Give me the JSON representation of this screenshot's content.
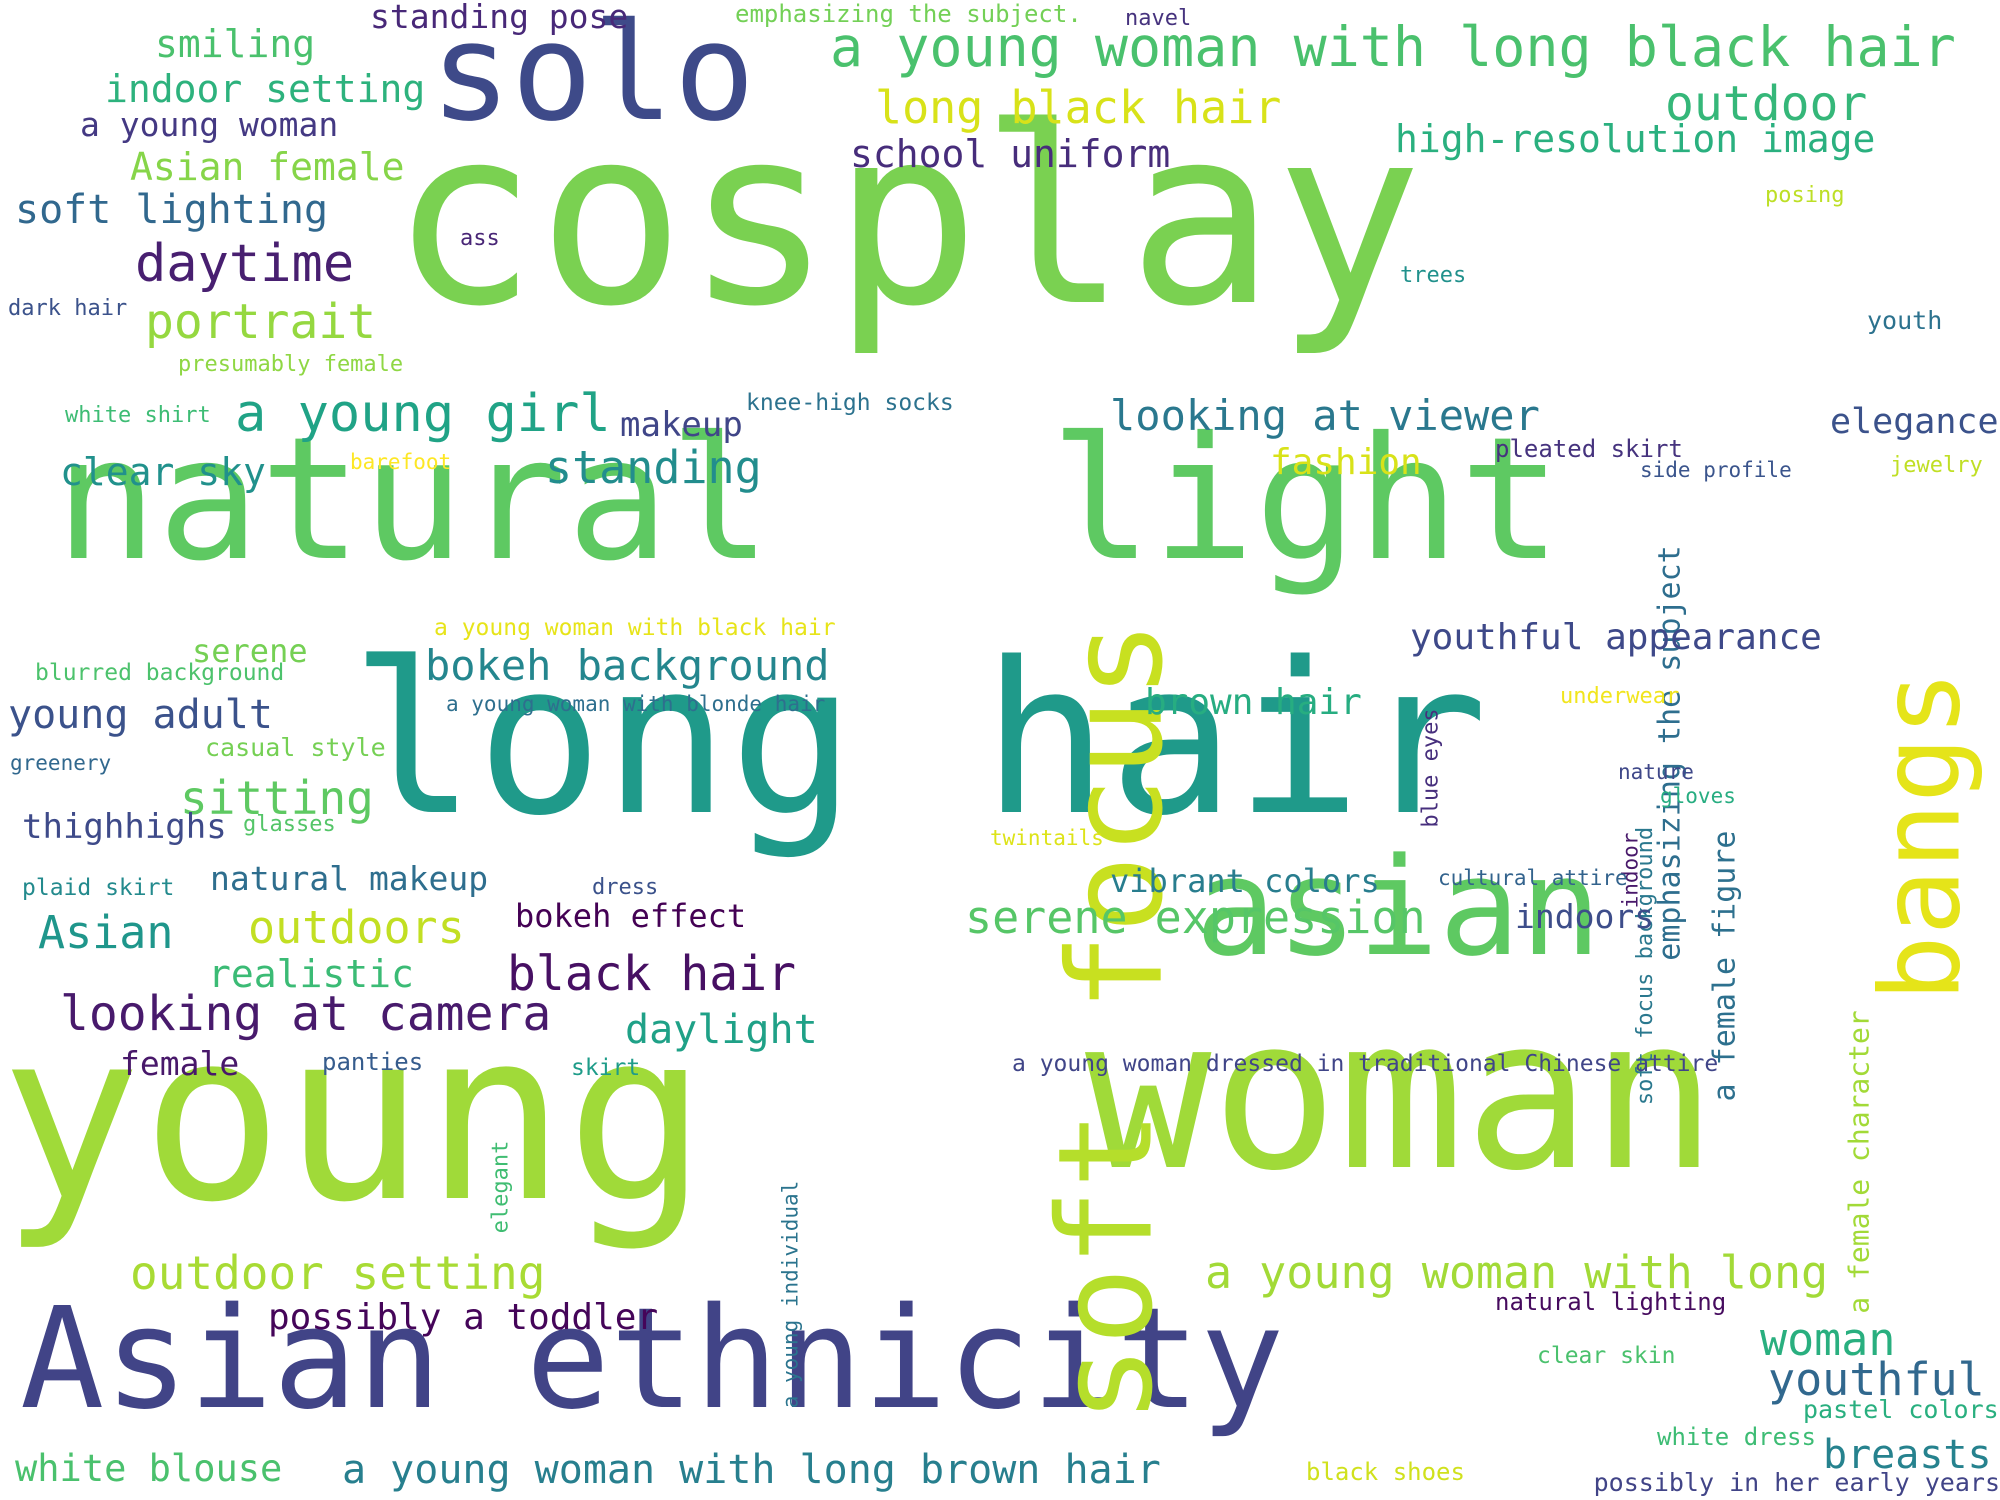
{
  "words": [
    {
      "id": "cosplay",
      "text": "cosplay",
      "color": "#7ad151"
    },
    {
      "id": "young",
      "text": "young",
      "color": "#a0da39"
    },
    {
      "id": "woman",
      "text": "woman",
      "color": "#a0da39"
    },
    {
      "id": "long-hair",
      "text": "long hair",
      "color": "#1f9a8a"
    },
    {
      "id": "natural",
      "text": "natural",
      "color": "#5ec962"
    },
    {
      "id": "light",
      "text": "light",
      "color": "#5ec962"
    },
    {
      "id": "asian-ethnicity",
      "text": "Asian ethnicity",
      "color": "#414487"
    },
    {
      "id": "solo",
      "text": "solo",
      "color": "#3e4a89"
    },
    {
      "id": "asian",
      "text": "asian",
      "color": "#5ec962"
    },
    {
      "id": "soft",
      "text": "soft",
      "color": "#b5de2b"
    },
    {
      "id": "focus",
      "text": "focus",
      "color": "#c8e020"
    },
    {
      "id": "bangs",
      "text": "bangs",
      "color": "#e5e419"
    },
    {
      "id": "young-woman-long-black-hair",
      "text": "a young woman with long black hair",
      "color": "#4ac16d"
    },
    {
      "id": "outdoor",
      "text": "outdoor",
      "color": "#35b779"
    },
    {
      "id": "long-black-hair",
      "text": "long black hair",
      "color": "#d8e219"
    },
    {
      "id": "high-res",
      "text": "high-resolution image",
      "color": "#2ab07f"
    },
    {
      "id": "school-uniform",
      "text": "school uniform",
      "color": "#472d7b"
    },
    {
      "id": "standing-pose",
      "text": "standing pose",
      "color": "#482878"
    },
    {
      "id": "emphasizing-subject-dot",
      "text": "emphasizing the subject.",
      "color": "#73d056"
    },
    {
      "id": "navel",
      "text": "navel",
      "color": "#46337e"
    },
    {
      "id": "smiling",
      "text": "smiling",
      "color": "#4ac16d"
    },
    {
      "id": "indoor-setting",
      "text": "indoor setting",
      "color": "#2db27d"
    },
    {
      "id": "a-young-woman",
      "text": "a young woman",
      "color": "#443983"
    },
    {
      "id": "asian-female",
      "text": "Asian female",
      "color": "#86d549"
    },
    {
      "id": "soft-lighting",
      "text": "soft lighting",
      "color": "#31688e"
    },
    {
      "id": "ass",
      "text": "ass",
      "color": "#482576"
    },
    {
      "id": "posing",
      "text": "posing",
      "color": "#bddf26"
    },
    {
      "id": "daytime",
      "text": "daytime",
      "color": "#481f70"
    },
    {
      "id": "trees",
      "text": "trees",
      "color": "#21918c"
    },
    {
      "id": "dark-hair",
      "text": "dark hair",
      "color": "#3b528b"
    },
    {
      "id": "youth",
      "text": "youth",
      "color": "#2c728e"
    },
    {
      "id": "portrait",
      "text": "portrait",
      "color": "#95d840"
    },
    {
      "id": "presumably-female",
      "text": "presumably female",
      "color": "#8fd744"
    },
    {
      "id": "a-young-girl",
      "text": "a young girl",
      "color": "#20a386"
    },
    {
      "id": "knee-high-socks",
      "text": "knee-high socks",
      "color": "#2c728e"
    },
    {
      "id": "makeup",
      "text": "makeup",
      "color": "#404688"
    },
    {
      "id": "looking-at-viewer",
      "text": "looking at viewer",
      "color": "#2a788e"
    },
    {
      "id": "elegance",
      "text": "elegance",
      "color": "#3b528b"
    },
    {
      "id": "white-shirt",
      "text": "white shirt",
      "color": "#3dbc74"
    },
    {
      "id": "clear-sky",
      "text": "clear sky",
      "color": "#21918c"
    },
    {
      "id": "barefoot",
      "text": "barefoot",
      "color": "#fde725"
    },
    {
      "id": "standing",
      "text": "standing",
      "color": "#228d8d"
    },
    {
      "id": "fashion",
      "text": "fashion",
      "color": "#d8e219"
    },
    {
      "id": "pleated-skirt",
      "text": "pleated skirt",
      "color": "#46337e"
    },
    {
      "id": "side-profile",
      "text": "side profile",
      "color": "#3a548c"
    },
    {
      "id": "jewelry",
      "text": "jewelry",
      "color": "#c0df25"
    },
    {
      "id": "emphasizing-the-subject",
      "text": "emphasizing the subject",
      "color": "#2e6e8e"
    },
    {
      "id": "a-female-figure",
      "text": "a female figure",
      "color": "#2d708e"
    },
    {
      "id": "a-female-character",
      "text": "a female character",
      "color": "#a2da37"
    },
    {
      "id": "serene",
      "text": "serene",
      "color": "#75d054"
    },
    {
      "id": "young-woman-black-hair",
      "text": "a young woman with black hair",
      "color": "#e7e419"
    },
    {
      "id": "youthful-appearance",
      "text": "youthful appearance",
      "color": "#3e4989"
    },
    {
      "id": "blurred-background",
      "text": "blurred background",
      "color": "#4cc26c"
    },
    {
      "id": "bokeh-background",
      "text": "bokeh background",
      "color": "#24868e"
    },
    {
      "id": "young-woman-blonde-hair",
      "text": "a young woman with blonde hair",
      "color": "#2e6f8e"
    },
    {
      "id": "blue-eyes",
      "text": "blue eyes",
      "color": "#472f7d"
    },
    {
      "id": "brown-hair",
      "text": "brown hair",
      "color": "#27ad81"
    },
    {
      "id": "underwear",
      "text": "underwear",
      "color": "#f1e51d"
    },
    {
      "id": "soft-focus-background",
      "text": "soft focus background",
      "color": "#2a788e"
    },
    {
      "id": "young-adult",
      "text": "young adult",
      "color": "#3b528b"
    },
    {
      "id": "casual-style",
      "text": "casual style",
      "color": "#75d054"
    },
    {
      "id": "greenery",
      "text": "greenery",
      "color": "#31688e"
    },
    {
      "id": "nature",
      "text": "nature",
      "color": "#3f4889"
    },
    {
      "id": "gloves",
      "text": "gloves",
      "color": "#27ad81"
    },
    {
      "id": "sitting",
      "text": "sitting",
      "color": "#5ec962"
    },
    {
      "id": "thighhighs",
      "text": "thighhighs",
      "color": "#3e4a89"
    },
    {
      "id": "glasses",
      "text": "glasses",
      "color": "#54c568"
    },
    {
      "id": "twintails",
      "text": "twintails",
      "color": "#dde318"
    },
    {
      "id": "indoor",
      "text": "indoor",
      "color": "#48186a"
    },
    {
      "id": "natural-makeup",
      "text": "natural makeup",
      "color": "#2e6e8e"
    },
    {
      "id": "plaid-skirt",
      "text": "plaid skirt",
      "color": "#238a8d"
    },
    {
      "id": "dress",
      "text": "dress",
      "color": "#3b528b"
    },
    {
      "id": "vibrant-colors",
      "text": "vibrant colors",
      "color": "#287d8e"
    },
    {
      "id": "cultural-attire",
      "text": "cultural attire",
      "color": "#33638d"
    },
    {
      "id": "asian-small",
      "text": "Asian",
      "color": "#1f968b"
    },
    {
      "id": "outdoors",
      "text": "outdoors",
      "color": "#c2df23"
    },
    {
      "id": "bokeh-effect",
      "text": "bokeh effect",
      "color": "#440154"
    },
    {
      "id": "serene-expression",
      "text": "serene expression",
      "color": "#56c667"
    },
    {
      "id": "indoors",
      "text": "indoors",
      "color": "#3d4d8a"
    },
    {
      "id": "realistic",
      "text": "realistic",
      "color": "#3bbb75"
    },
    {
      "id": "black-hair",
      "text": "black hair",
      "color": "#471063"
    },
    {
      "id": "looking-at-camera",
      "text": "looking at camera",
      "color": "#481a6c"
    },
    {
      "id": "daylight",
      "text": "daylight",
      "color": "#1fa187"
    },
    {
      "id": "female",
      "text": "female",
      "color": "#48186a"
    },
    {
      "id": "panties",
      "text": "panties",
      "color": "#365c8d"
    },
    {
      "id": "skirt",
      "text": "skirt",
      "color": "#1e9c89"
    },
    {
      "id": "traditional-chinese",
      "text": "a young woman dressed in traditional Chinese attire",
      "color": "#404588"
    },
    {
      "id": "elegant",
      "text": "elegant",
      "color": "#40bd72"
    },
    {
      "id": "young-individual",
      "text": "a young individual",
      "color": "#2b748e"
    },
    {
      "id": "outdoor-setting",
      "text": "outdoor setting",
      "color": "#a8db34"
    },
    {
      "id": "young-woman-with-long",
      "text": "a young woman with long",
      "color": "#a2da37"
    },
    {
      "id": "natural-lighting",
      "text": "natural lighting",
      "color": "#460b5e"
    },
    {
      "id": "possibly-toddler",
      "text": "possibly a toddler",
      "color": "#450559"
    },
    {
      "id": "woman-small",
      "text": "woman",
      "color": "#29af7f"
    },
    {
      "id": "clear-skin",
      "text": "clear skin",
      "color": "#4ac16d"
    },
    {
      "id": "youthful",
      "text": "youthful",
      "color": "#31688e"
    },
    {
      "id": "pastel-colors",
      "text": "pastel colors",
      "color": "#29af7f"
    },
    {
      "id": "white-dress",
      "text": "white dress",
      "color": "#3dbc74"
    },
    {
      "id": "breasts",
      "text": "breasts",
      "color": "#26828e"
    },
    {
      "id": "white-blouse",
      "text": "white blouse",
      "color": "#4ac16d"
    },
    {
      "id": "young-woman-long-brown-hair",
      "text": "a young woman with long brown hair",
      "color": "#277f8e"
    },
    {
      "id": "black-shoes",
      "text": "black shoes",
      "color": "#d0e11c"
    },
    {
      "id": "possibly-early-years",
      "text": "possibly in her early years",
      "color": "#414487"
    }
  ]
}
